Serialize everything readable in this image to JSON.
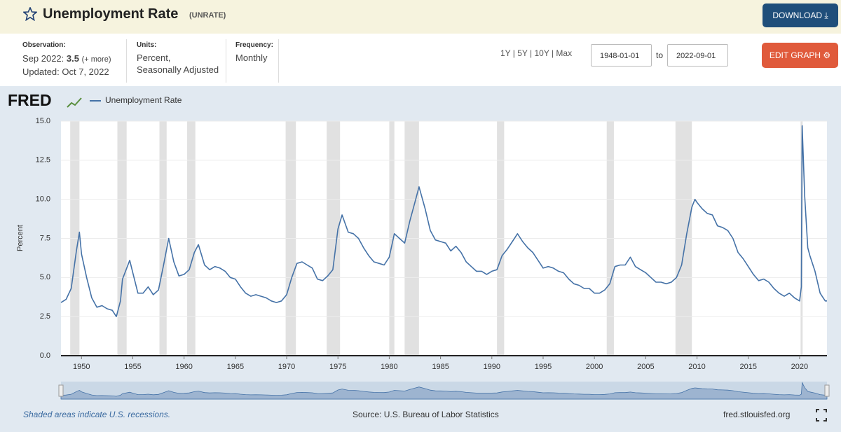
{
  "header": {
    "title": "Unemployment Rate",
    "series_id": "(UNRATE)",
    "download": "DOWNLOAD"
  },
  "observation": {
    "label": "Observation:",
    "date": "Sep 2022:",
    "value": 3.5,
    "more": "(+ more)",
    "updated": "Updated: Oct 7, 2022"
  },
  "units": {
    "label": "Units:",
    "lines": [
      "Percent,",
      "Seasonally Adjusted"
    ]
  },
  "frequency": {
    "label": "Frequency:",
    "value": "Monthly"
  },
  "range": {
    "presets": "1Y | 5Y | 10Y | Max",
    "start": "1948-01-01",
    "to": "to",
    "end": "2022-09-01"
  },
  "edit_graph": "EDIT GRAPH",
  "logo": "FRED",
  "chart_data": {
    "type": "line",
    "ylabel": "Percent",
    "grid": true,
    "x": [
      1948,
      1948.5,
      1949,
      1949.5,
      1949.8,
      1950,
      1950.5,
      1951,
      1951.5,
      1952,
      1952.5,
      1953,
      1953.4,
      1953.8,
      1954,
      1954.7,
      1955,
      1955.5,
      1956,
      1956.5,
      1957,
      1957.5,
      1958,
      1958.5,
      1959,
      1959.5,
      1960,
      1960.5,
      1961,
      1961.4,
      1962,
      1962.5,
      1963,
      1963.5,
      1964,
      1964.5,
      1965,
      1965.5,
      1966,
      1966.5,
      1967,
      1967.5,
      1968,
      1968.5,
      1969,
      1969.5,
      1970,
      1970.5,
      1971,
      1971.5,
      1972,
      1972.5,
      1973,
      1973.5,
      1974,
      1974.5,
      1975,
      1975.4,
      1976,
      1976.5,
      1977,
      1977.5,
      1978,
      1978.5,
      1979,
      1979.5,
      1980,
      1980.5,
      1981,
      1981.5,
      1982,
      1982.5,
      1982.9,
      1983.5,
      1984,
      1984.5,
      1985,
      1985.5,
      1986,
      1986.5,
      1987,
      1987.5,
      1988,
      1988.5,
      1989,
      1989.5,
      1990,
      1990.5,
      1991,
      1991.5,
      1992,
      1992.5,
      1993,
      1993.5,
      1994,
      1994.5,
      1995,
      1995.5,
      1996,
      1996.5,
      1997,
      1997.5,
      1998,
      1998.5,
      1999,
      1999.5,
      2000,
      2000.5,
      2001,
      2001.5,
      2002,
      2002.5,
      2003,
      2003.5,
      2004,
      2004.5,
      2005,
      2005.5,
      2006,
      2006.5,
      2007,
      2007.5,
      2008,
      2008.5,
      2009,
      2009.5,
      2009.8,
      2010,
      2010.5,
      2011,
      2011.5,
      2012,
      2012.5,
      2013,
      2013.5,
      2014,
      2014.5,
      2015,
      2015.5,
      2016,
      2016.5,
      2017,
      2017.5,
      2018,
      2018.5,
      2019,
      2019.5,
      2020,
      2020.17,
      2020.25,
      2020.5,
      2020.8,
      2021,
      2021.5,
      2022,
      2022.5,
      2022.67
    ],
    "series": [
      {
        "name": "Unemployment Rate",
        "color": "#4572a7",
        "values": [
          3.4,
          3.6,
          4.3,
          6.7,
          7.9,
          6.5,
          5.0,
          3.7,
          3.1,
          3.2,
          3.0,
          2.9,
          2.5,
          3.5,
          4.9,
          6.1,
          5.3,
          4.0,
          4.0,
          4.4,
          3.9,
          4.2,
          5.8,
          7.5,
          6.0,
          5.1,
          5.2,
          5.5,
          6.6,
          7.1,
          5.8,
          5.5,
          5.7,
          5.6,
          5.4,
          5.0,
          4.9,
          4.4,
          4.0,
          3.8,
          3.9,
          3.8,
          3.7,
          3.5,
          3.4,
          3.5,
          3.9,
          5.0,
          5.9,
          6.0,
          5.8,
          5.6,
          4.9,
          4.8,
          5.1,
          5.5,
          8.1,
          9.0,
          7.9,
          7.8,
          7.5,
          6.9,
          6.4,
          6.0,
          5.9,
          5.8,
          6.3,
          7.8,
          7.5,
          7.2,
          8.6,
          9.8,
          10.8,
          9.4,
          8.0,
          7.4,
          7.3,
          7.2,
          6.7,
          7.0,
          6.6,
          6.0,
          5.7,
          5.4,
          5.4,
          5.2,
          5.4,
          5.5,
          6.4,
          6.8,
          7.3,
          7.8,
          7.3,
          6.9,
          6.6,
          6.1,
          5.6,
          5.7,
          5.6,
          5.4,
          5.3,
          4.9,
          4.6,
          4.5,
          4.3,
          4.3,
          4.0,
          4.0,
          4.2,
          4.6,
          5.7,
          5.8,
          5.8,
          6.3,
          5.7,
          5.5,
          5.3,
          5.0,
          4.7,
          4.7,
          4.6,
          4.7,
          5.0,
          5.8,
          7.8,
          9.5,
          10.0,
          9.8,
          9.4,
          9.1,
          9.0,
          8.3,
          8.2,
          8.0,
          7.5,
          6.6,
          6.2,
          5.7,
          5.2,
          4.8,
          4.9,
          4.7,
          4.3,
          4.0,
          3.8,
          4.0,
          3.7,
          3.5,
          4.4,
          14.7,
          10.2,
          6.9,
          6.4,
          5.4,
          4.0,
          3.5,
          3.5
        ]
      }
    ],
    "recessions": [
      [
        1948.9,
        1949.8
      ],
      [
        1953.5,
        1954.4
      ],
      [
        1957.6,
        1958.3
      ],
      [
        1960.3,
        1961.1
      ],
      [
        1969.9,
        1970.9
      ],
      [
        1973.9,
        1975.2
      ],
      [
        1980.0,
        1980.5
      ],
      [
        1981.5,
        1982.9
      ],
      [
        1990.5,
        1991.2
      ],
      [
        2001.2,
        2001.9
      ],
      [
        2007.9,
        2009.5
      ],
      [
        2020.1,
        2020.3
      ]
    ],
    "xlim": [
      1948,
      2022.67
    ],
    "xticks": [
      1950,
      1955,
      1960,
      1965,
      1970,
      1975,
      1980,
      1985,
      1990,
      1995,
      2000,
      2005,
      2010,
      2015,
      2020
    ],
    "ylim": [
      0,
      15
    ],
    "yticks": [
      {
        "value": 0,
        "label": "0.0"
      },
      {
        "value": 2.5,
        "label": "2.5"
      },
      {
        "value": 5,
        "label": "5.0"
      },
      {
        "value": 7.5,
        "label": "7.5"
      },
      {
        "value": 10,
        "label": "10.0"
      },
      {
        "value": 12.5,
        "label": "12.5"
      },
      {
        "value": 15,
        "label": "15.0"
      }
    ]
  },
  "footer": {
    "recessions_note": "Shaded areas indicate U.S. recessions.",
    "source": "Source: U.S. Bureau of Labor Statistics",
    "site": "fred.stlouisfed.org"
  }
}
